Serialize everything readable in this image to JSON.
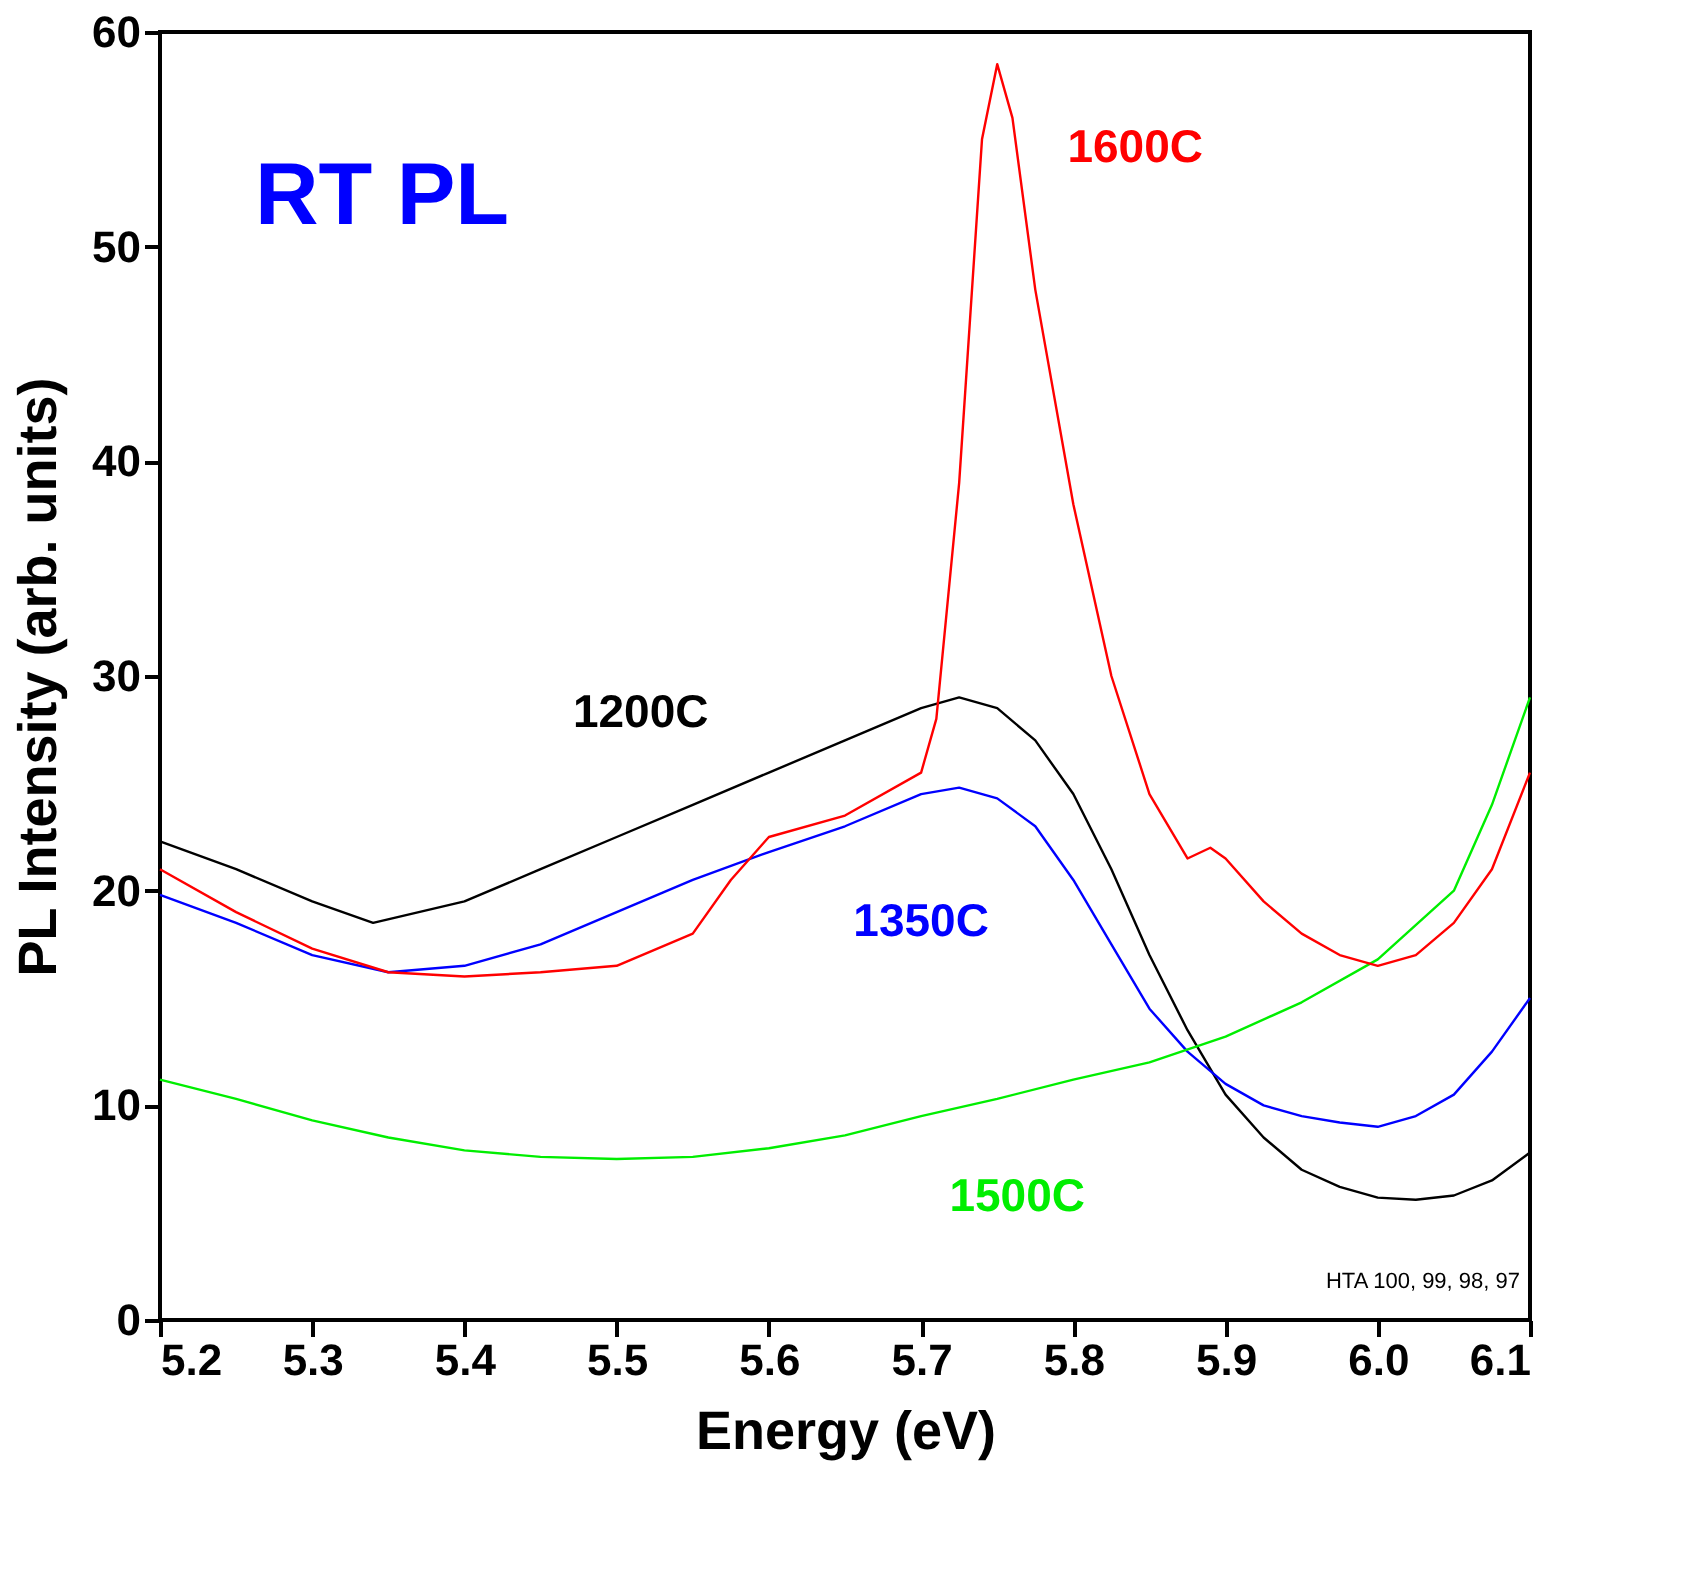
{
  "chart_data": {
    "type": "line",
    "xlabel": "Energy (eV)",
    "ylabel": "PL Intensity (arb. units)",
    "xlim": [
      5.2,
      6.1
    ],
    "xticks": [
      {
        "value": 5.2,
        "label": "5.2"
      },
      {
        "value": 5.3,
        "label": "5.3"
      },
      {
        "value": 5.4,
        "label": "5.4"
      },
      {
        "value": 5.5,
        "label": "5.5"
      },
      {
        "value": 5.6,
        "label": "5.6"
      },
      {
        "value": 5.7,
        "label": "5.7"
      },
      {
        "value": 5.8,
        "label": "5.8"
      },
      {
        "value": 5.9,
        "label": "5.9"
      },
      {
        "value": 6.0,
        "label": "6.0"
      },
      {
        "value": 6.1,
        "label": "6.1"
      }
    ],
    "ylim": [
      0,
      60
    ],
    "yticks": [
      0,
      10,
      20,
      30,
      40,
      50,
      60
    ],
    "grid": false,
    "marker": "none",
    "line_style": "solid",
    "series": [
      {
        "name": "1200C",
        "color": "#000000",
        "x": [
          5.2,
          5.25,
          5.3,
          5.34,
          5.4,
          5.45,
          5.5,
          5.55,
          5.6,
          5.65,
          5.7,
          5.725,
          5.75,
          5.775,
          5.8,
          5.825,
          5.85,
          5.875,
          5.9,
          5.925,
          5.95,
          5.975,
          6.0,
          6.025,
          6.05,
          6.075,
          6.1
        ],
        "values": [
          22.3,
          21,
          19.5,
          18.5,
          19.5,
          21,
          22.5,
          24,
          25.5,
          27,
          28.5,
          29,
          28.5,
          27,
          24.5,
          21,
          17,
          13.5,
          10.5,
          8.5,
          7,
          6.2,
          5.7,
          5.6,
          5.8,
          6.5,
          7.8
        ]
      },
      {
        "name": "1350C",
        "color": "#0000ff",
        "x": [
          5.2,
          5.25,
          5.3,
          5.35,
          5.4,
          5.45,
          5.5,
          5.55,
          5.6,
          5.65,
          5.7,
          5.725,
          5.75,
          5.775,
          5.8,
          5.825,
          5.85,
          5.875,
          5.9,
          5.925,
          5.95,
          5.975,
          6.0,
          6.025,
          6.05,
          6.075,
          6.1
        ],
        "values": [
          19.8,
          18.5,
          17,
          16.2,
          16.5,
          17.5,
          19,
          20.5,
          21.8,
          23,
          24.5,
          24.8,
          24.3,
          23,
          20.5,
          17.5,
          14.5,
          12.5,
          11,
          10,
          9.5,
          9.2,
          9,
          9.5,
          10.5,
          12.5,
          15
        ]
      },
      {
        "name": "1500C",
        "color": "#00ee00",
        "x": [
          5.2,
          5.25,
          5.3,
          5.35,
          5.4,
          5.45,
          5.5,
          5.55,
          5.6,
          5.65,
          5.7,
          5.75,
          5.8,
          5.85,
          5.9,
          5.95,
          6.0,
          6.05,
          6.075,
          6.1
        ],
        "values": [
          11.2,
          10.3,
          9.3,
          8.5,
          7.9,
          7.6,
          7.5,
          7.6,
          8,
          8.6,
          9.5,
          10.3,
          11.2,
          12,
          13.2,
          14.8,
          16.8,
          20,
          24,
          29
        ]
      },
      {
        "name": "1600C",
        "color": "#ff0000",
        "x": [
          5.2,
          5.25,
          5.3,
          5.35,
          5.4,
          5.45,
          5.5,
          5.55,
          5.575,
          5.6,
          5.65,
          5.7,
          5.71,
          5.725,
          5.74,
          5.75,
          5.76,
          5.775,
          5.8,
          5.825,
          5.85,
          5.875,
          5.89,
          5.9,
          5.925,
          5.95,
          5.975,
          6.0,
          6.025,
          6.05,
          6.075,
          6.1
        ],
        "values": [
          21,
          19,
          17.3,
          16.2,
          16,
          16.2,
          16.5,
          18,
          20.5,
          22.5,
          23.5,
          25.5,
          28,
          39,
          55,
          58.5,
          56,
          48,
          38,
          30,
          24.5,
          21.5,
          22,
          21.5,
          19.5,
          18,
          17,
          16.5,
          17,
          18.5,
          21,
          25.5
        ]
      }
    ],
    "annotations": [
      "RT PL",
      "HTA 100, 99, 98, 97"
    ]
  }
}
